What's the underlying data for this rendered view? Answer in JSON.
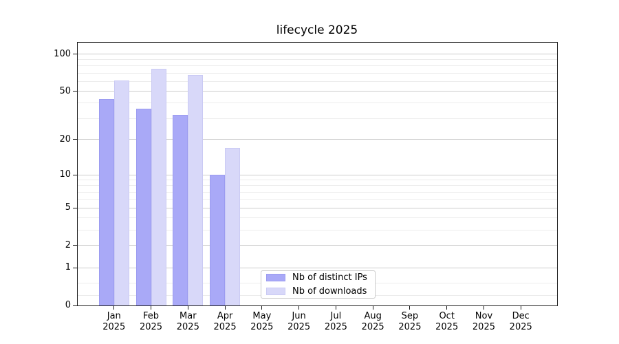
{
  "title": "lifecycle 2025",
  "legend": {
    "items": [
      {
        "label": "Nb of distinct IPs",
        "color": "#a9a9f7",
        "edge": "#9b9bf0"
      },
      {
        "label": "Nb of downloads",
        "color": "#d8d8f9",
        "edge": "#cacaf4"
      }
    ]
  },
  "colors": {
    "grid_major": "#cbcbcb",
    "grid_minor": "#ececec",
    "axis": "#1a1a1a",
    "background": "#ffffff"
  },
  "chart_data": {
    "type": "bar",
    "title": "lifecycle 2025",
    "xlabel": "",
    "ylabel": "",
    "y_scale": "log10(1+v)",
    "ylim": [
      0,
      125
    ],
    "y_ticks": [
      0,
      1,
      2,
      5,
      10,
      20,
      50,
      100
    ],
    "y_minor_ticks": [
      0.2,
      0.5,
      3,
      4,
      6,
      7,
      8,
      9,
      30,
      40,
      60,
      70,
      80,
      90
    ],
    "grid": "horizontal major+minor",
    "legend_position": "lower center-right inside",
    "categories": [
      "Jan 2025",
      "Feb 2025",
      "Mar 2025",
      "Apr 2025",
      "May 2025",
      "Jun 2025",
      "Jul 2025",
      "Aug 2025",
      "Sep 2025",
      "Oct 2025",
      "Nov 2025",
      "Dec 2025"
    ],
    "series": [
      {
        "name": "Nb of distinct IPs",
        "color": "#a9a9f7",
        "values": [
          43,
          36,
          32,
          10,
          0,
          0,
          0,
          0,
          0,
          0,
          0,
          0
        ]
      },
      {
        "name": "Nb of downloads",
        "color": "#d8d8f9",
        "values": [
          61,
          76,
          68,
          17,
          0,
          0,
          0,
          0,
          0,
          0,
          0,
          0
        ]
      }
    ]
  }
}
